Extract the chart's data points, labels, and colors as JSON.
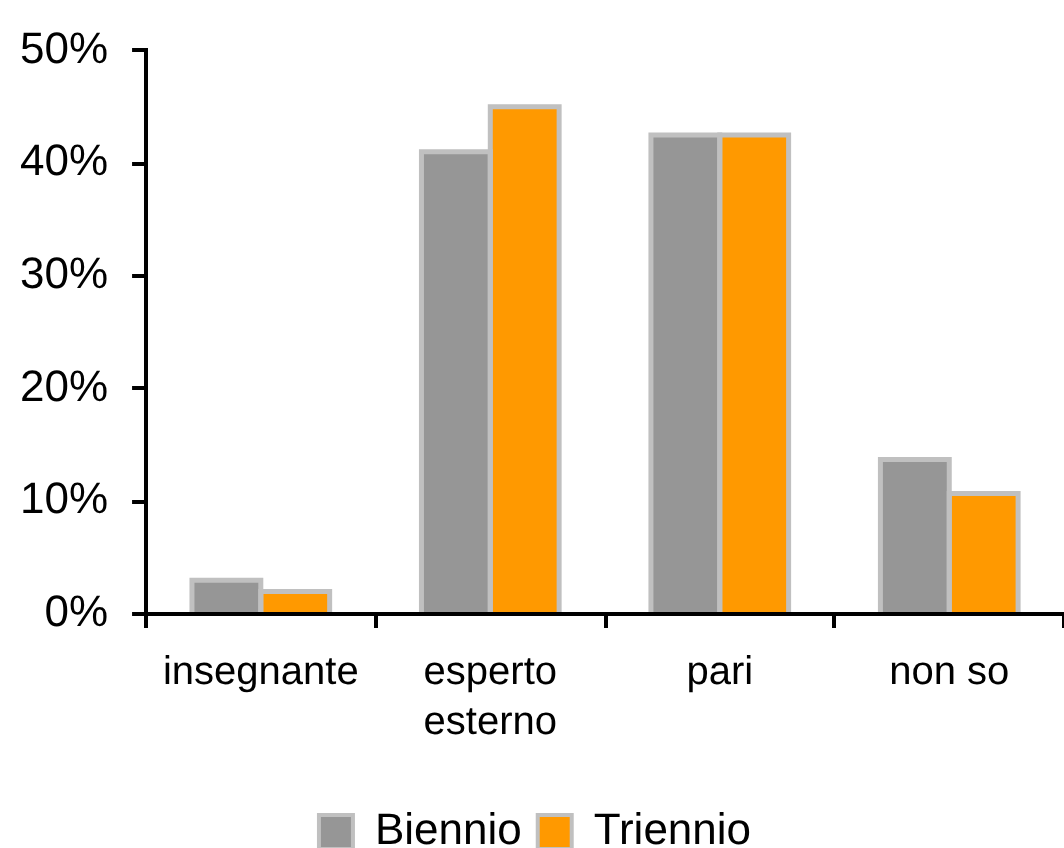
{
  "chart_data": {
    "type": "bar",
    "categories": [
      "insegnante",
      "esperto esterno",
      "pari",
      "non so"
    ],
    "series": [
      {
        "name": "Biennio",
        "color": "#969696",
        "values": [
          3,
          41,
          42.5,
          13.7
        ]
      },
      {
        "name": "Triennio",
        "color": "#ff9900",
        "values": [
          2,
          45,
          42.5,
          10.7
        ]
      }
    ],
    "ylim": [
      0,
      50
    ],
    "yticks": [
      {
        "value": 0,
        "label": "0%"
      },
      {
        "value": 10,
        "label": "10%"
      },
      {
        "value": 20,
        "label": "20%"
      },
      {
        "value": 30,
        "label": "30%"
      },
      {
        "value": 40,
        "label": "40%"
      },
      {
        "value": 50,
        "label": "50%"
      }
    ],
    "grid": false,
    "legend": "bottom"
  }
}
